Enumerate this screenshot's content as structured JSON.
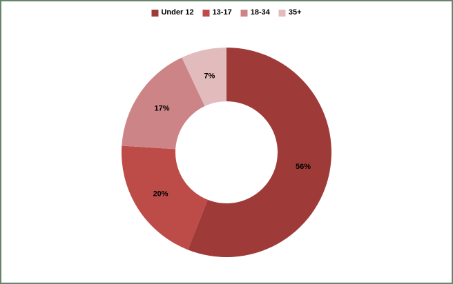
{
  "chart_data": {
    "type": "pie",
    "subtype": "donut",
    "categories": [
      "Under 12",
      "13-17",
      "18-34",
      "35+"
    ],
    "values": [
      56,
      20,
      17,
      7
    ],
    "labels": [
      "56%",
      "20%",
      "17%",
      "7%"
    ],
    "colors": [
      "#9E3B38",
      "#BD4B48",
      "#CD8486",
      "#E2BCBD"
    ],
    "title": "",
    "legend_position": "top-center",
    "start_angle_deg": 0,
    "direction": "clockwise",
    "inner_radius_ratio": 0.49,
    "label_color": "#000000"
  },
  "legend": {
    "items": [
      {
        "label": "Under 12",
        "color": "#9E3B38"
      },
      {
        "label": "13-17",
        "color": "#BD4B48"
      },
      {
        "label": "18-34",
        "color": "#CD8486"
      },
      {
        "label": "35+",
        "color": "#E2BCBD"
      }
    ]
  },
  "frame": {
    "border_color": "#67836C",
    "background": "#FFFFFF"
  }
}
